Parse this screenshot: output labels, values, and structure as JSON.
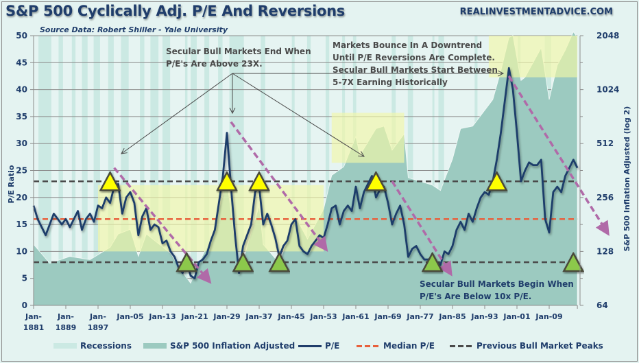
{
  "header": {
    "title": "S&P 500 Cyclically Adj. P/E And Reversions",
    "source": "Source Data: Robert Shiller - Yale University",
    "brand": "REALINVESTMENTADVICE.COM"
  },
  "colors": {
    "background": "#e4f3f1",
    "recession": "#cbe9e3",
    "sp500_area": "#9ccac0",
    "pe_line": "#1f3d6b",
    "median_line": "#e8603c",
    "peaks_line": "#4a4a4a",
    "overvalued_band": "#f3f7a8",
    "peak_marker": "#ffff00",
    "trough_marker": "#8cc84b",
    "reversion_arrow": "#b06aa8"
  },
  "legend": [
    {
      "label": "Recessions",
      "type": "swatch",
      "color": "#cbe9e3"
    },
    {
      "label": "S&P 500 Inflation Adjusted",
      "type": "swatch",
      "color": "#9ccac0"
    },
    {
      "label": "P/E",
      "type": "line",
      "color": "#1f3d6b"
    },
    {
      "label": "Median P/E",
      "type": "dashed",
      "color": "#e8603c"
    },
    {
      "label": "Previous Bull Market Peaks",
      "type": "dashed",
      "color": "#4a4a4a"
    }
  ],
  "annotations": {
    "end_when": [
      "Secular Bull Markets End When",
      "P/E's Are Above 23X."
    ],
    "bounce": [
      "Markets Bounce In A Downtrend",
      "Until P/E Reversions Are Complete.",
      "Secular Bull Markets Start Between",
      "5-7X Earning Historically"
    ],
    "begin_when": [
      "Secular Bull Markets Begin When",
      "P/E's Are Below 10x P/E."
    ]
  },
  "chart_data": {
    "type": "line",
    "title": "S&P 500 Cyclically Adj. P/E And Reversions",
    "xlabel": "",
    "ylabel": "P/E Ratio",
    "y2label": "S&P 500 Inflation Adjusted (log 2)",
    "ylim": [
      0,
      50
    ],
    "y2lim": [
      64,
      2048
    ],
    "y2scale": "log2",
    "xlim": [
      1881,
      2016
    ],
    "yticks": [
      "0",
      "5",
      "10",
      "15",
      "20",
      "25",
      "30",
      "35",
      "40",
      "45",
      "50"
    ],
    "y2ticks": [
      "64",
      "128",
      "256",
      "512",
      "1024",
      "2048"
    ],
    "xticks": [
      {
        "year": 1881,
        "label": [
          "Jan-",
          "1881"
        ]
      },
      {
        "year": 1889,
        "label": [
          "Jan-",
          "1889"
        ]
      },
      {
        "year": 1897,
        "label": [
          "Jan-",
          "1897"
        ]
      },
      {
        "year": 1905,
        "label": [
          "Jan-05"
        ]
      },
      {
        "year": 1913,
        "label": [
          "Jan-13"
        ]
      },
      {
        "year": 1921,
        "label": [
          "Jan-21"
        ]
      },
      {
        "year": 1929,
        "label": [
          "Jan-29"
        ]
      },
      {
        "year": 1937,
        "label": [
          "Jan-37"
        ]
      },
      {
        "year": 1945,
        "label": [
          "Jan-45"
        ]
      },
      {
        "year": 1953,
        "label": [
          "Jan-53"
        ]
      },
      {
        "year": 1961,
        "label": [
          "Jan-61"
        ]
      },
      {
        "year": 1969,
        "label": [
          "Jan-69"
        ]
      },
      {
        "year": 1977,
        "label": [
          "Jan-77"
        ]
      },
      {
        "year": 1985,
        "label": [
          "Jan-85"
        ]
      },
      {
        "year": 1993,
        "label": [
          "Jan-93"
        ]
      },
      {
        "year": 2001,
        "label": [
          "Jan-01"
        ]
      },
      {
        "year": 2009,
        "label": [
          "Jan-09"
        ]
      }
    ],
    "median_pe": 16,
    "bull_peak_level": 23,
    "bull_trough_level": 8,
    "series": [
      {
        "name": "P/E",
        "axis": "left",
        "points": [
          [
            1881,
            18.5
          ],
          [
            1882,
            16
          ],
          [
            1883,
            14.5
          ],
          [
            1884,
            13
          ],
          [
            1885,
            15
          ],
          [
            1886,
            17
          ],
          [
            1887,
            16
          ],
          [
            1888,
            15
          ],
          [
            1889,
            16
          ],
          [
            1890,
            14.5
          ],
          [
            1891,
            16
          ],
          [
            1892,
            17.5
          ],
          [
            1893,
            14
          ],
          [
            1894,
            16
          ],
          [
            1895,
            17
          ],
          [
            1896,
            15.5
          ],
          [
            1897,
            18.5
          ],
          [
            1898,
            18
          ],
          [
            1899,
            20
          ],
          [
            1900,
            19
          ],
          [
            1901,
            22
          ],
          [
            1902,
            22.5
          ],
          [
            1903,
            17
          ],
          [
            1904,
            20
          ],
          [
            1905,
            21
          ],
          [
            1906,
            19
          ],
          [
            1907,
            13
          ],
          [
            1908,
            16.5
          ],
          [
            1909,
            18
          ],
          [
            1910,
            14
          ],
          [
            1911,
            15
          ],
          [
            1912,
            14.5
          ],
          [
            1913,
            11.5
          ],
          [
            1914,
            12
          ],
          [
            1915,
            10
          ],
          [
            1916,
            9
          ],
          [
            1917,
            7
          ],
          [
            1918,
            6
          ],
          [
            1919,
            8
          ],
          [
            1920,
            5.5
          ],
          [
            1921,
            5
          ],
          [
            1922,
            8
          ],
          [
            1923,
            8.5
          ],
          [
            1924,
            9.5
          ],
          [
            1925,
            12
          ],
          [
            1926,
            14
          ],
          [
            1927,
            19
          ],
          [
            1928,
            24
          ],
          [
            1929,
            32
          ],
          [
            1930,
            22
          ],
          [
            1931,
            13
          ],
          [
            1932,
            6
          ],
          [
            1933,
            11
          ],
          [
            1934,
            13
          ],
          [
            1935,
            15
          ],
          [
            1936,
            21
          ],
          [
            1937,
            22
          ],
          [
            1938,
            15
          ],
          [
            1939,
            17
          ],
          [
            1940,
            15
          ],
          [
            1941,
            12.5
          ],
          [
            1942,
            9
          ],
          [
            1943,
            11
          ],
          [
            1944,
            12
          ],
          [
            1945,
            15
          ],
          [
            1946,
            16
          ],
          [
            1947,
            11
          ],
          [
            1948,
            10
          ],
          [
            1949,
            9.5
          ],
          [
            1950,
            11
          ],
          [
            1951,
            12
          ],
          [
            1952,
            13
          ],
          [
            1953,
            12.5
          ],
          [
            1954,
            15
          ],
          [
            1955,
            18
          ],
          [
            1956,
            18.5
          ],
          [
            1957,
            15
          ],
          [
            1958,
            17.5
          ],
          [
            1959,
            18.5
          ],
          [
            1960,
            17.5
          ],
          [
            1961,
            22
          ],
          [
            1962,
            18
          ],
          [
            1963,
            21
          ],
          [
            1964,
            22.5
          ],
          [
            1965,
            24
          ],
          [
            1966,
            20
          ],
          [
            1967,
            21.5
          ],
          [
            1968,
            22
          ],
          [
            1969,
            19
          ],
          [
            1970,
            15
          ],
          [
            1971,
            17
          ],
          [
            1972,
            18.5
          ],
          [
            1973,
            15
          ],
          [
            1974,
            9
          ],
          [
            1975,
            10.5
          ],
          [
            1976,
            11
          ],
          [
            1977,
            9.5
          ],
          [
            1978,
            8.5
          ],
          [
            1979,
            8.5
          ],
          [
            1980,
            9
          ],
          [
            1981,
            8
          ],
          [
            1982,
            7.5
          ],
          [
            1983,
            10
          ],
          [
            1984,
            9.5
          ],
          [
            1985,
            11
          ],
          [
            1986,
            14
          ],
          [
            1987,
            15.5
          ],
          [
            1988,
            14
          ],
          [
            1989,
            17
          ],
          [
            1990,
            15.5
          ],
          [
            1991,
            18
          ],
          [
            1992,
            20
          ],
          [
            1993,
            21
          ],
          [
            1994,
            20.5
          ],
          [
            1995,
            23
          ],
          [
            1996,
            27
          ],
          [
            1997,
            32
          ],
          [
            1998,
            38
          ],
          [
            1999,
            44
          ],
          [
            2000,
            40
          ],
          [
            2001,
            32
          ],
          [
            2002,
            23
          ],
          [
            2003,
            25
          ],
          [
            2004,
            26.5
          ],
          [
            2005,
            26
          ],
          [
            2006,
            26
          ],
          [
            2007,
            27
          ],
          [
            2008,
            16
          ],
          [
            2009,
            13.5
          ],
          [
            2010,
            21
          ],
          [
            2011,
            22
          ],
          [
            2012,
            21
          ],
          [
            2013,
            24
          ],
          [
            2014,
            25.5
          ],
          [
            2015,
            27
          ],
          [
            2016,
            25.5
          ]
        ]
      },
      {
        "name": "S&P 500 Inflation Adjusted",
        "axis": "right",
        "points": [
          [
            1881,
            140
          ],
          [
            1885,
            110
          ],
          [
            1890,
            120
          ],
          [
            1895,
            115
          ],
          [
            1900,
            135
          ],
          [
            1902,
            160
          ],
          [
            1905,
            170
          ],
          [
            1907,
            120
          ],
          [
            1909,
            160
          ],
          [
            1915,
            125
          ],
          [
            1917,
            105
          ],
          [
            1920,
            85
          ],
          [
            1922,
            110
          ],
          [
            1925,
            150
          ],
          [
            1929,
            320
          ],
          [
            1932,
            95
          ],
          [
            1937,
            230
          ],
          [
            1938,
            140
          ],
          [
            1942,
            110
          ],
          [
            1946,
            200
          ],
          [
            1949,
            150
          ],
          [
            1953,
            220
          ],
          [
            1955,
            340
          ],
          [
            1958,
            380
          ],
          [
            1961,
            560
          ],
          [
            1962,
            440
          ],
          [
            1966,
            620
          ],
          [
            1968,
            640
          ],
          [
            1970,
            470
          ],
          [
            1973,
            580
          ],
          [
            1974,
            330
          ],
          [
            1980,
            300
          ],
          [
            1982,
            280
          ],
          [
            1985,
            420
          ],
          [
            1987,
            620
          ],
          [
            1990,
            640
          ],
          [
            1995,
            900
          ],
          [
            1997,
            1300
          ],
          [
            1999,
            2000
          ],
          [
            2000,
            2050
          ],
          [
            2002,
            1150
          ],
          [
            2003,
            1200
          ],
          [
            2007,
            1750
          ],
          [
            2009,
            900
          ],
          [
            2011,
            1400
          ],
          [
            2013,
            1700
          ],
          [
            2015,
            2150
          ],
          [
            2016,
            2000
          ]
        ]
      }
    ],
    "recessions": [
      [
        1882.2,
        1885.4
      ],
      [
        1887.2,
        1888.3
      ],
      [
        1890.5,
        1891.4
      ],
      [
        1893.0,
        1894.4
      ],
      [
        1895.9,
        1897.5
      ],
      [
        1899.5,
        1900.9
      ],
      [
        1902.7,
        1904.6
      ],
      [
        1907.4,
        1908.5
      ],
      [
        1910.0,
        1912.0
      ],
      [
        1913.0,
        1914.9
      ],
      [
        1918.6,
        1919.2
      ],
      [
        1920.0,
        1921.5
      ],
      [
        1923.4,
        1924.6
      ],
      [
        1926.8,
        1927.9
      ],
      [
        1929.6,
        1933.2
      ],
      [
        1937.4,
        1938.5
      ],
      [
        1945.1,
        1945.8
      ],
      [
        1948.9,
        1949.8
      ],
      [
        1953.5,
        1954.4
      ],
      [
        1957.6,
        1958.3
      ],
      [
        1960.3,
        1961.1
      ],
      [
        1969.9,
        1970.9
      ],
      [
        1973.9,
        1975.2
      ],
      [
        1980.0,
        1980.5
      ],
      [
        1981.5,
        1982.9
      ],
      [
        1990.5,
        1991.2
      ],
      [
        2001.2,
        2001.9
      ],
      [
        2007.9,
        2009.5
      ]
    ],
    "overvalued_zones": [
      {
        "x": [
          1897,
          1953
        ],
        "y2": [
          128,
          300
        ]
      },
      {
        "x": [
          1955,
          1973
        ],
        "y2": [
          400,
          760
        ]
      },
      {
        "x": [
          1994,
          2016
        ],
        "y2": [
          1200,
          2048
        ]
      }
    ],
    "peak_markers": [
      {
        "year": 1900,
        "pe": 23
      },
      {
        "year": 1929,
        "pe": 23
      },
      {
        "year": 1937,
        "pe": 23
      },
      {
        "year": 1966,
        "pe": 23
      },
      {
        "year": 1996,
        "pe": 23
      }
    ],
    "trough_markers": [
      {
        "year": 1919,
        "pe": 8
      },
      {
        "year": 1933,
        "pe": 8
      },
      {
        "year": 1942,
        "pe": 8
      },
      {
        "year": 1980,
        "pe": 8
      },
      {
        "year": 2015,
        "pe": 8
      }
    ],
    "reversion_arrows": [
      {
        "from": [
          1901,
          25.5
        ],
        "to": [
          1924,
          5
        ]
      },
      {
        "from": [
          1930,
          34
        ],
        "to": [
          1953,
          11
        ]
      },
      {
        "from": [
          1970,
          23
        ],
        "to": [
          1984,
          6.5
        ]
      },
      {
        "from": [
          1999,
          42.5
        ],
        "to": [
          2023,
          14
        ]
      }
    ]
  }
}
